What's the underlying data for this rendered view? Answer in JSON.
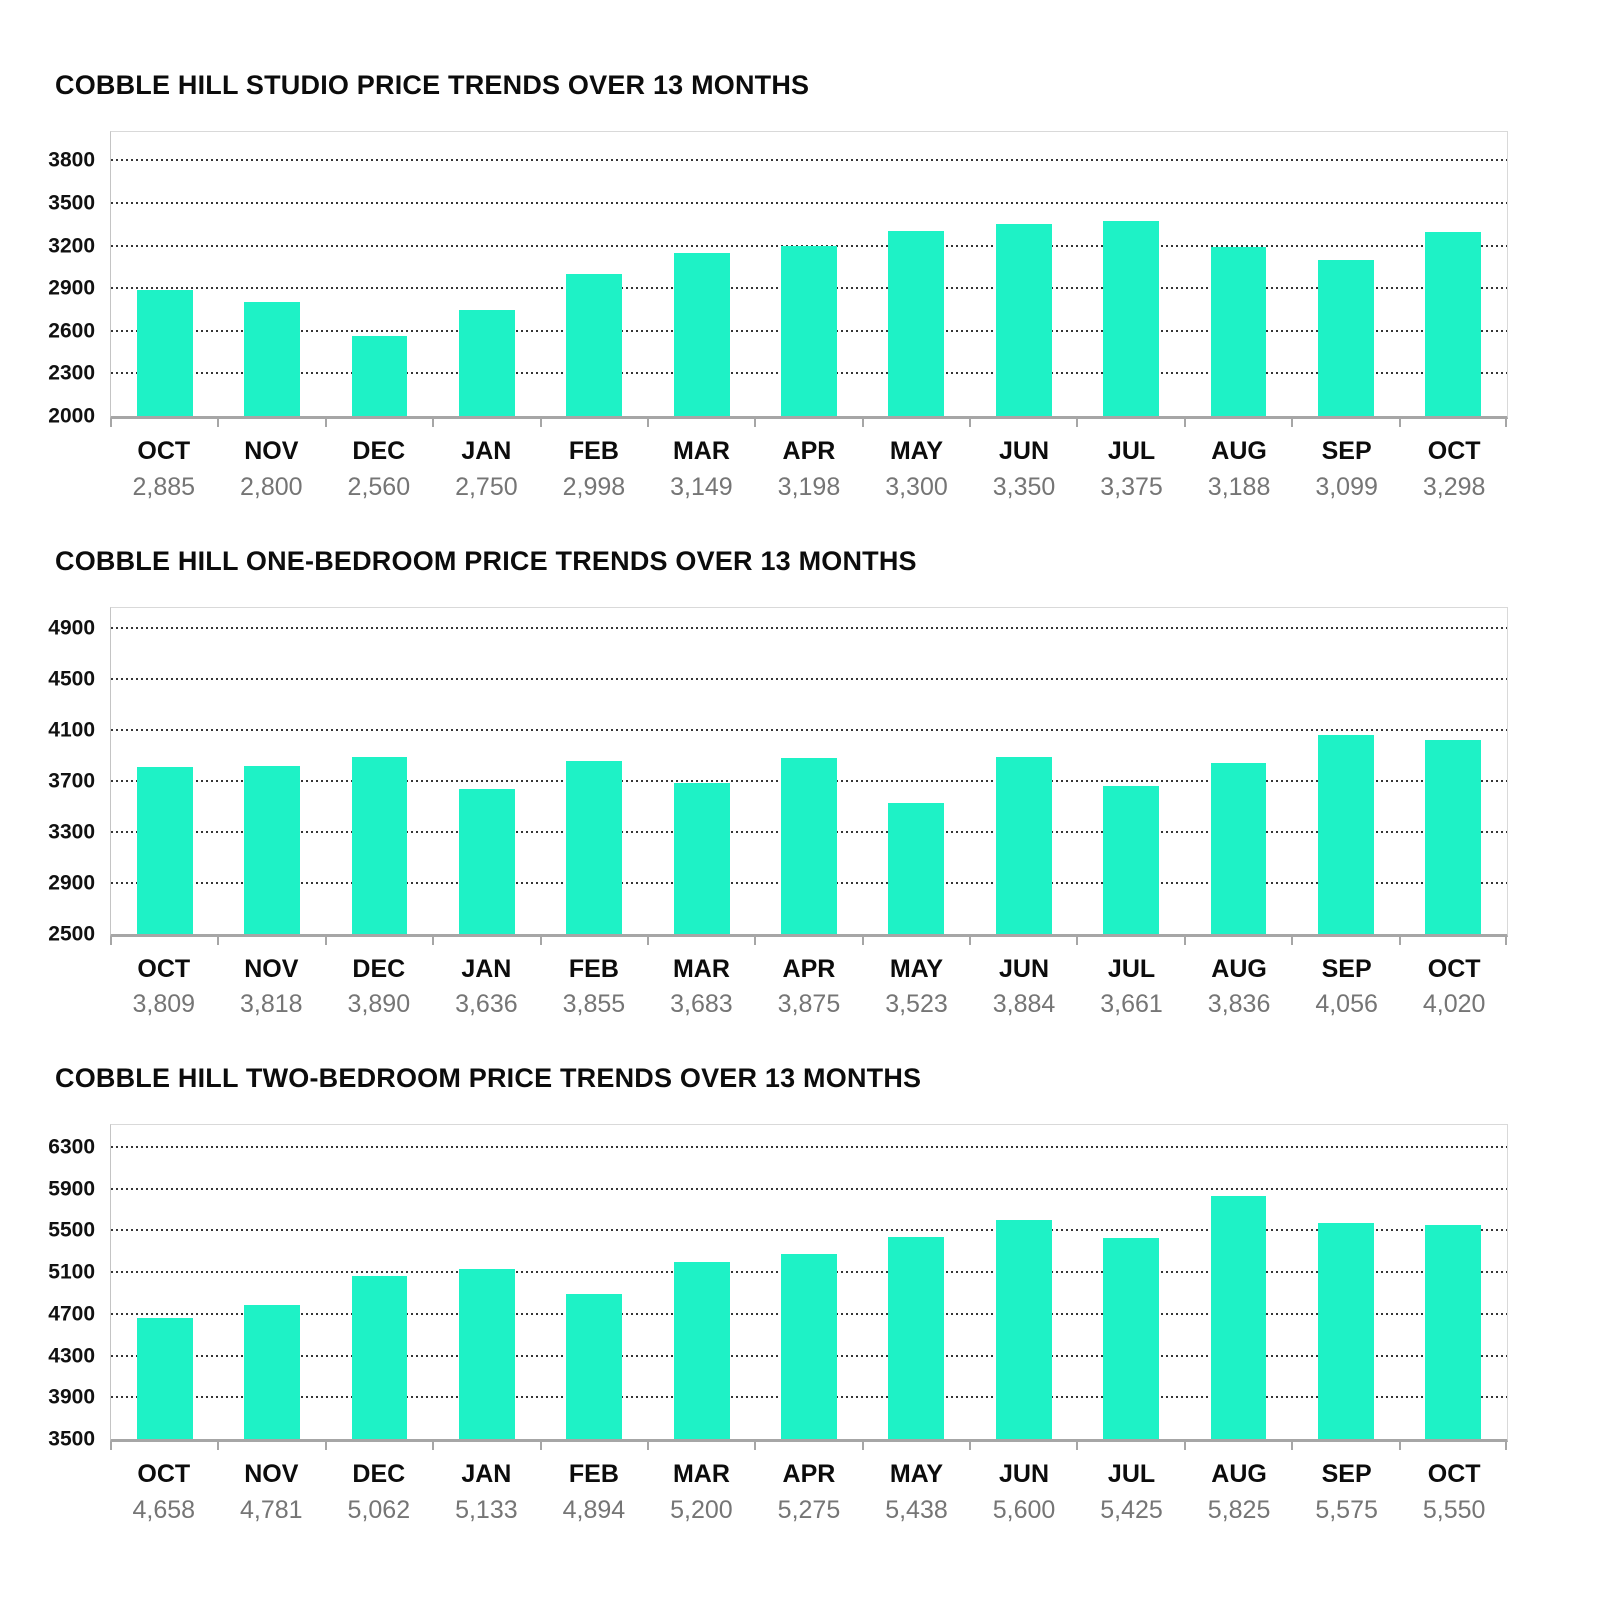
{
  "colors": {
    "bar": "#1EF2C6",
    "gridline": "#353535",
    "axis": "#a6a6a6",
    "plot_border": "#d9d9d9",
    "month_text": "#0c0c0c",
    "value_text": "#757575",
    "background": "#ffffff"
  },
  "chart_data": [
    {
      "type": "bar",
      "title": "COBBLE HILL STUDIO PRICE TRENDS OVER 13 MONTHS",
      "categories": [
        "OCT",
        "NOV",
        "DEC",
        "JAN",
        "FEB",
        "MAR",
        "APR",
        "MAY",
        "JUN",
        "JUL",
        "AUG",
        "SEP",
        "OCT"
      ],
      "values": [
        2885,
        2800,
        2560,
        2750,
        2998,
        3149,
        3198,
        3300,
        3350,
        3375,
        3188,
        3099,
        3298
      ],
      "value_labels": [
        "2,885",
        "2,800",
        "2,560",
        "2,750",
        "2,998",
        "3,149",
        "3,198",
        "3,300",
        "3,350",
        "3,375",
        "3,188",
        "3,099",
        "3,298"
      ],
      "xlabel": "",
      "ylabel": "",
      "yticks": [
        2000,
        2300,
        2600,
        2900,
        3200,
        3500,
        3800
      ],
      "ylim": [
        2000,
        4000
      ],
      "grid": "horizontal-dotted",
      "legend": "none"
    },
    {
      "type": "bar",
      "title": "COBBLE HILL ONE-BEDROOM PRICE TRENDS OVER 13 MONTHS",
      "categories": [
        "OCT",
        "NOV",
        "DEC",
        "JAN",
        "FEB",
        "MAR",
        "APR",
        "MAY",
        "JUN",
        "JUL",
        "AUG",
        "SEP",
        "OCT"
      ],
      "values": [
        3809,
        3818,
        3890,
        3636,
        3855,
        3683,
        3875,
        3523,
        3884,
        3661,
        3836,
        4056,
        4020
      ],
      "value_labels": [
        "3,809",
        "3,818",
        "3,890",
        "3,636",
        "3,855",
        "3,683",
        "3,875",
        "3,523",
        "3,884",
        "3,661",
        "3,836",
        "4,056",
        "4,020"
      ],
      "xlabel": "",
      "ylabel": "",
      "yticks": [
        2500,
        2900,
        3300,
        3700,
        4100,
        4500,
        4900
      ],
      "ylim": [
        2500,
        5060
      ],
      "grid": "horizontal-dotted",
      "legend": "none"
    },
    {
      "type": "bar",
      "title": "COBBLE HILL TWO-BEDROOM PRICE TRENDS OVER 13 MONTHS",
      "categories": [
        "OCT",
        "NOV",
        "DEC",
        "JAN",
        "FEB",
        "MAR",
        "APR",
        "MAY",
        "JUN",
        "JUL",
        "AUG",
        "SEP",
        "OCT"
      ],
      "values": [
        4658,
        4781,
        5062,
        5133,
        4894,
        5200,
        5275,
        5438,
        5600,
        5425,
        5825,
        5575,
        5550
      ],
      "value_labels": [
        "4,658",
        "4,781",
        "5,062",
        "5,133",
        "4,894",
        "5,200",
        "5,275",
        "5,438",
        "5,600",
        "5,425",
        "5,825",
        "5,575",
        "5,550"
      ],
      "xlabel": "",
      "ylabel": "",
      "yticks": [
        3500,
        3900,
        4300,
        4700,
        5100,
        5500,
        5900,
        6300
      ],
      "ylim": [
        3500,
        6510
      ],
      "grid": "horizontal-dotted",
      "legend": "none"
    }
  ]
}
